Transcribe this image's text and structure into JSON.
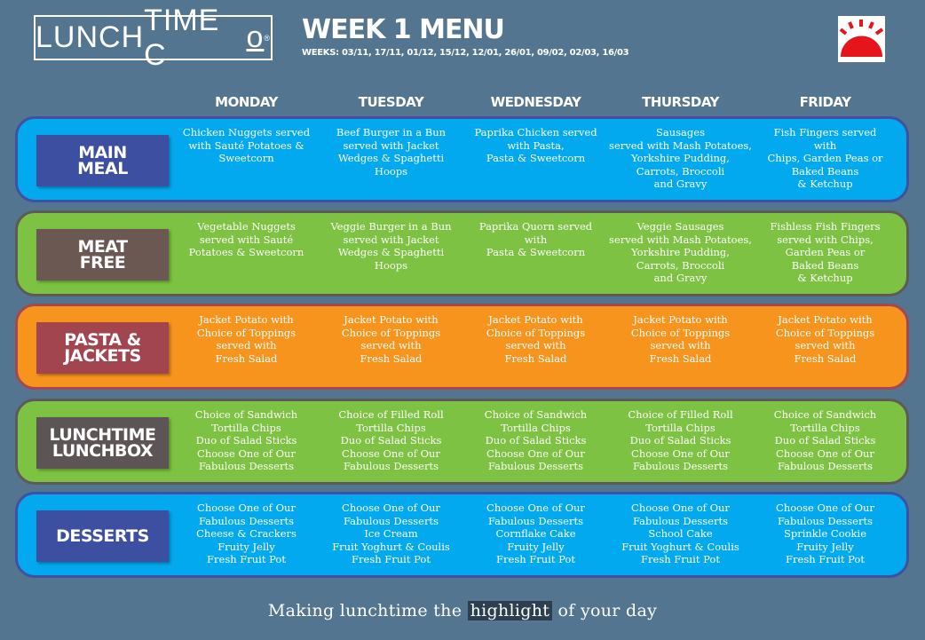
{
  "header": {
    "logo": {
      "bold": "LUNCH",
      "light": "TIME C",
      "suffix": "o",
      "mark": "®"
    },
    "title": "WEEK 1 MENU",
    "weeks": "WEEKS: 03/11, 17/11, 01/12, 15/12, 12/01, 26/01, 09/02, 02/03, 16/03",
    "sun_icon": "sun-icon"
  },
  "days": [
    "MONDAY",
    "TUESDAY",
    "WEDNESDAY",
    "THURSDAY",
    "FRIDAY"
  ],
  "colors": {
    "background": "#537590",
    "blue": "#03a9ee",
    "green": "#7dc242",
    "orange": "#f7941d"
  },
  "rows": [
    {
      "label": "MAIN\nMEAL",
      "items": [
        "Chicken Nuggets served\nwith Sauté Potatoes &\nSweetcorn",
        "Beef Burger in a  Bun\nserved with Jacket\nWedges & Spaghetti\nHoops",
        "Paprika Chicken served\nwith Pasta,\nPasta & Sweetcorn",
        "Sausages\nserved with Mash Potatoes,\nYorkshire Pudding,\nCarrots, Broccoli\nand Gravy",
        "Fish Fingers  served\nwith\nChips, Garden Peas or\nBaked Beans\n& Ketchup"
      ]
    },
    {
      "label": "MEAT\nFREE",
      "items": [
        "Vegetable Nuggets\nserved with Sauté\nPotatoes & Sweetcorn",
        "Veggie Burger in a  Bun\nserved with Jacket\nWedges & Spaghetti\nHoops",
        "Paprika Quorn served\nwith\nPasta & Sweetcorn",
        "Veggie Sausages\nserved with Mash Potatoes,\nYorkshire Pudding,\nCarrots, Broccoli\nand Gravy",
        "Fishless Fish Fingers\nserved with Chips,\nGarden Peas or\nBaked Beans\n& Ketchup"
      ]
    },
    {
      "label": "PASTA &\nJACKETS",
      "items": [
        "Jacket Potato with\nChoice of Toppings\nserved with\nFresh Salad",
        "Jacket Potato with\nChoice of Toppings\nserved with\nFresh Salad",
        "Jacket Potato with\nChoice of Toppings\nserved with\nFresh Salad",
        "Jacket Potato with\nChoice of Toppings\nserved with\nFresh Salad",
        "Jacket Potato with\nChoice of Toppings\nserved with\nFresh Salad"
      ]
    },
    {
      "label": "LUNCHTIME\nLUNCHBOX",
      "items": [
        "Choice of Sandwich\nTortilla Chips\nDuo of Salad Sticks\nChoose One of Our\nFabulous Desserts",
        "Choice of Filled Roll\nTortilla Chips\nDuo of Salad Sticks\nChoose One of Our\nFabulous Desserts",
        "Choice of Sandwich\nTortilla Chips\nDuo of Salad Sticks\nChoose One of Our\nFabulous Desserts",
        "Choice of Filled Roll\nTortilla Chips\nDuo of Salad Sticks\nChoose One of Our\nFabulous Desserts",
        "Choice of Sandwich\nTortilla Chips\nDuo of Salad Sticks\nChoose One of Our\nFabulous Desserts"
      ]
    },
    {
      "label": "DESSERTS",
      "items": [
        "Choose One of Our\nFabulous Desserts\nCheese & Crackers\nFruity Jelly\nFresh Fruit Pot",
        "Choose One of Our\nFabulous Desserts\nIce Cream\nFruit Yoghurt & Coulis\nFresh Fruit Pot",
        "Choose One of Our\nFabulous Desserts\nCornflake Cake\nFruity Jelly\nFresh Fruit Pot",
        "Choose One of Our\nFabulous Desserts\nSchool Cake\nFruit Yoghurt & Coulis\nFresh Fruit Pot",
        "Choose One of Our\nFabulous Desserts\nSprinkle Cookie\nFruity Jelly\nFresh Fruit Pot"
      ]
    }
  ],
  "footer": {
    "before": "Making lunchtime the ",
    "highlight": "highlight",
    "after": " of your day"
  }
}
